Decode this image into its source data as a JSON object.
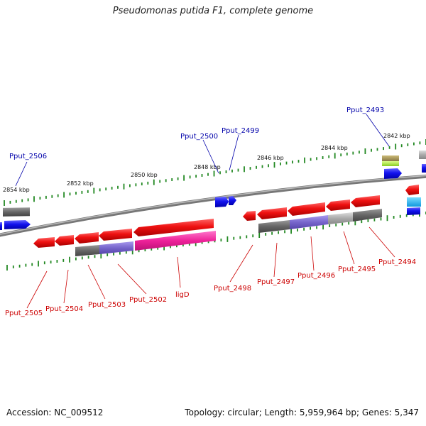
{
  "title": "Pseudomonas putida F1, complete genome",
  "footer": {
    "accession": "Accession: NC_009512",
    "stats": "Topology: circular; Length: 5,959,964 bp; Genes: 5,347"
  },
  "scale_labels": [
    "2854 kbp",
    "2852 kbp",
    "2850 kbp",
    "2848 kbp",
    "2846 kbp",
    "2844 kbp",
    "2842 kbp"
  ],
  "genes_top": [
    "Pput_2506",
    "Pput_2500",
    "Pput_2499",
    "Pput_2493"
  ],
  "genes_bottom": [
    "Pput_2505",
    "Pput_2504",
    "Pput_2503",
    "Pput_2502",
    "ligD",
    "Pput_2498",
    "Pput_2497",
    "Pput_2496",
    "Pput_2495",
    "Pput_2494"
  ],
  "colors": {
    "gene_red": "#ee1111",
    "gene_blue": "#1111ee",
    "domain_gray": "#666666",
    "domain_purple": "#7766cc",
    "domain_pink": "#ee2299",
    "domain_lightgray": "#aaaaaa",
    "domain_olive": "#aa9955",
    "domain_lime": "#aaee44",
    "domain_cyan": "#22bbee",
    "tick_green": "#228822",
    "backbone": "#888888"
  }
}
